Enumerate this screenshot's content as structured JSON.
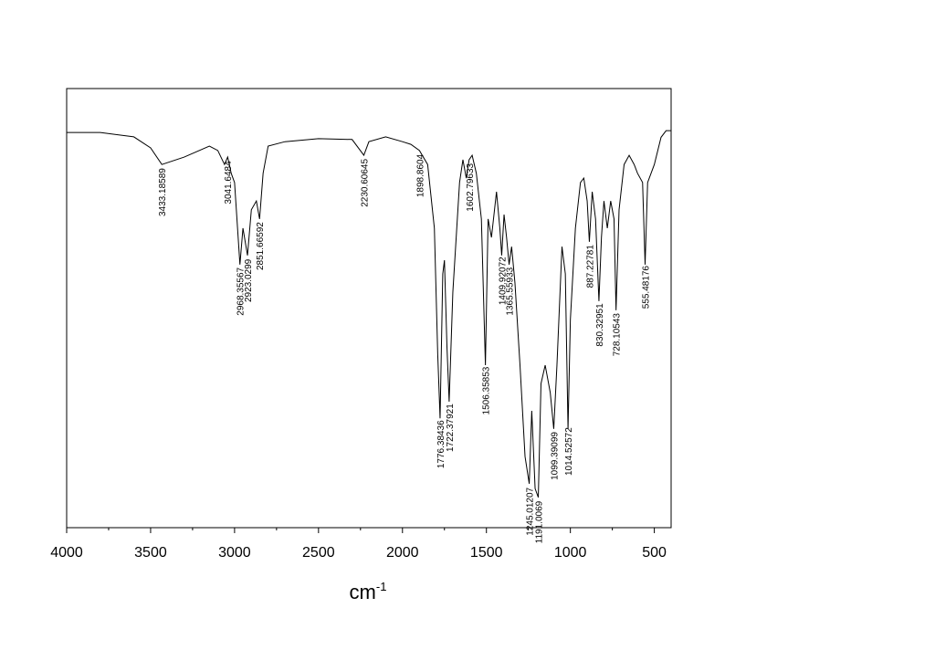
{
  "chart_data": {
    "type": "line",
    "xlabel": {
      "base": "cm",
      "superscript": "-1"
    },
    "xlim": [
      4000,
      400
    ],
    "ylim": [
      0,
      100
    ],
    "xticks": [
      4000,
      3500,
      3000,
      2500,
      2000,
      1500,
      1000,
      500
    ],
    "xminorticks": [
      3750,
      3250,
      2750,
      2250,
      1750,
      1250,
      750
    ],
    "color": "#000000",
    "x": [
      4000,
      3800,
      3600,
      3500,
      3433,
      3300,
      3150,
      3100,
      3060,
      3041,
      3020,
      3000,
      2968,
      2950,
      2923,
      2900,
      2870,
      2851,
      2830,
      2800,
      2700,
      2500,
      2300,
      2230,
      2200,
      2100,
      2000,
      1950,
      1899,
      1850,
      1810,
      1790,
      1776,
      1760,
      1750,
      1735,
      1722,
      1700,
      1660,
      1640,
      1620,
      1603,
      1585,
      1560,
      1530,
      1506,
      1490,
      1470,
      1440,
      1420,
      1409,
      1395,
      1380,
      1365,
      1350,
      1330,
      1300,
      1270,
      1245,
      1230,
      1210,
      1191,
      1175,
      1150,
      1120,
      1099,
      1080,
      1050,
      1030,
      1014,
      1000,
      970,
      940,
      920,
      900,
      887,
      870,
      850,
      830,
      815,
      800,
      780,
      760,
      740,
      728,
      710,
      680,
      650,
      620,
      600,
      570,
      555,
      540,
      500,
      460,
      430,
      400
    ],
    "values": [
      90.0,
      90.0,
      89.0,
      86.5,
      82.7,
      84.4,
      86.9,
      85.9,
      82.7,
      84.4,
      80.7,
      78.6,
      59.9,
      68.2,
      62.0,
      72.4,
      74.4,
      70.3,
      80.7,
      86.9,
      87.9,
      88.6,
      88.4,
      84.8,
      87.9,
      89.0,
      87.9,
      87.3,
      85.9,
      82.7,
      68.2,
      39.5,
      24.9,
      57.8,
      60.9,
      41.2,
      28.7,
      53.6,
      78.6,
      83.8,
      79.6,
      83.8,
      84.8,
      80.7,
      70.3,
      37.0,
      70.3,
      66.1,
      76.5,
      68.2,
      62.0,
      71.3,
      66.1,
      59.9,
      64.0,
      55.7,
      37.0,
      16.2,
      10.0,
      26.6,
      8.9,
      6.9,
      32.8,
      37.0,
      30.8,
      22.5,
      37.0,
      64.0,
      57.8,
      22.5,
      47.4,
      68.2,
      78.6,
      79.6,
      74.4,
      65.1,
      76.5,
      70.3,
      51.6,
      66.1,
      74.4,
      68.2,
      74.4,
      70.3,
      49.5,
      72.4,
      82.7,
      84.8,
      82.7,
      80.7,
      78.6,
      59.9,
      78.6,
      82.7,
      88.9,
      90.4,
      90.4
    ],
    "annotations": [
      {
        "x": 3433.18589,
        "label": "3433.18589"
      },
      {
        "x": 3041.6484,
        "label": "3041.6484"
      },
      {
        "x": 2968.35567,
        "label": "2968.35567"
      },
      {
        "x": 2923.0299,
        "label": "2923.0299"
      },
      {
        "x": 2851.66592,
        "label": "2851.66592"
      },
      {
        "x": 2230.60645,
        "label": "2230.60645"
      },
      {
        "x": 1898.8604,
        "label": "1898.8604"
      },
      {
        "x": 1776.38436,
        "label": "1776.38436"
      },
      {
        "x": 1722.37921,
        "label": "1722.37921"
      },
      {
        "x": 1602.79633,
        "label": "1602.79633"
      },
      {
        "x": 1506.35853,
        "label": "1506.35853"
      },
      {
        "x": 1409.92072,
        "label": "1409.92072"
      },
      {
        "x": 1365.55933,
        "label": "1365.55933"
      },
      {
        "x": 1245.01207,
        "label": "1245.01207"
      },
      {
        "x": 1191.0069,
        "label": "1191.0069"
      },
      {
        "x": 1099.39099,
        "label": "1099.39099"
      },
      {
        "x": 1014.52572,
        "label": "1014.52572"
      },
      {
        "x": 887.22781,
        "label": "887.22781"
      },
      {
        "x": 830.32951,
        "label": "830.32951"
      },
      {
        "x": 728.10543,
        "label": "728.10543"
      },
      {
        "x": 555.48176,
        "label": "555.48176"
      }
    ]
  }
}
